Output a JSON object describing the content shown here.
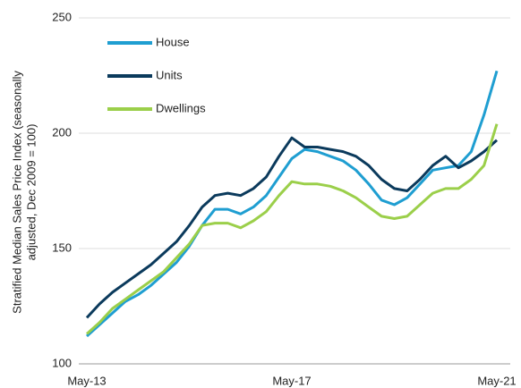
{
  "chart_data": {
    "type": "line",
    "y_label": [
      "Stratified Median Sales Price Index (seasonally",
      "adjusted, Dec 2009 = 100)"
    ],
    "categories": [
      "May-13",
      null,
      null,
      null,
      null,
      null,
      null,
      null,
      null,
      null,
      null,
      null,
      null,
      null,
      null,
      null,
      "May-17",
      null,
      null,
      null,
      null,
      null,
      null,
      null,
      null,
      null,
      null,
      null,
      null,
      null,
      null,
      null,
      "May-21"
    ],
    "series": [
      {
        "name": "House",
        "color": "#1f9ed1",
        "values": [
          112,
          117,
          122,
          127,
          130,
          134,
          139,
          144,
          151,
          160,
          167,
          167,
          165,
          168,
          173,
          181,
          189,
          193,
          192,
          190,
          188,
          184,
          178,
          171,
          169,
          172,
          178,
          184,
          185,
          186,
          192,
          208,
          227
        ]
      },
      {
        "name": "Units",
        "color": "#0b3a5c",
        "values": [
          120,
          126,
          131,
          135,
          139,
          143,
          148,
          153,
          160,
          168,
          173,
          174,
          173,
          176,
          181,
          190,
          198,
          194,
          194,
          193,
          192,
          190,
          186,
          180,
          176,
          175,
          180,
          186,
          190,
          185,
          188,
          192,
          197
        ]
      },
      {
        "name": "Dwellings",
        "color": "#9bcf4a",
        "values": [
          113,
          118,
          124,
          128,
          132,
          136,
          140,
          146,
          152,
          160,
          161,
          161,
          159,
          162,
          166,
          173,
          179,
          178,
          178,
          177,
          175,
          172,
          168,
          164,
          163,
          164,
          169,
          174,
          176,
          176,
          180,
          186,
          204
        ]
      }
    ],
    "ylim": [
      100,
      250
    ],
    "yticks": [
      100,
      150,
      200,
      250
    ],
    "grid": true,
    "legend": "top-left"
  }
}
